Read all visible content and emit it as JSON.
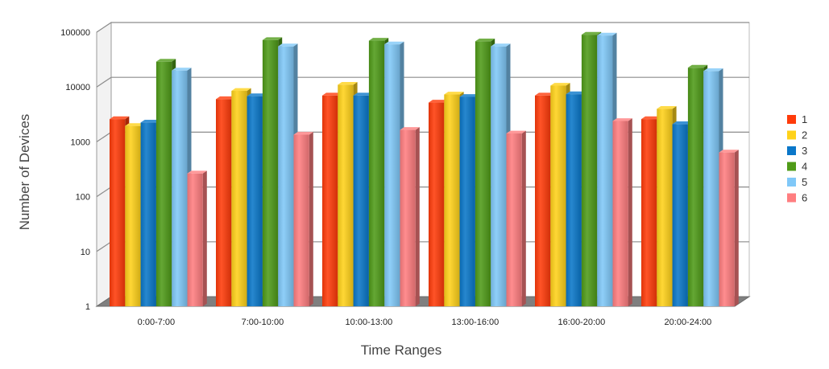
{
  "chart_data": {
    "type": "bar",
    "scale": "log",
    "three_d": true,
    "xlabel": "Time Ranges",
    "ylabel": "Number of Devices",
    "ylim": [
      1,
      100000
    ],
    "yticks": [
      "1",
      "10",
      "100",
      "1000",
      "10000",
      "100000"
    ],
    "grid": true,
    "legend_position": "right",
    "categories": [
      "0:00-7:00",
      "7:00-10:00",
      "10:00-13:00",
      "13:00-16:00",
      "16:00-20:00",
      "20:00-24:00"
    ],
    "series": [
      {
        "name": "1",
        "color": "#ff3b0a",
        "values": [
          2600,
          6000,
          7000,
          5200,
          7000,
          2600
        ]
      },
      {
        "name": "2",
        "color": "#ffd21a",
        "values": [
          1950,
          8500,
          11000,
          7300,
          10600,
          4000
        ]
      },
      {
        "name": "3",
        "color": "#0a77c9",
        "values": [
          2250,
          6800,
          7000,
          6600,
          7400,
          2100
        ]
      },
      {
        "name": "4",
        "color": "#4f9b18",
        "values": [
          29000,
          72000,
          70000,
          68000,
          90000,
          22500
        ]
      },
      {
        "name": "5",
        "color": "#80c8f8",
        "values": [
          20000,
          55000,
          60000,
          55000,
          87000,
          19500
        ]
      },
      {
        "name": "6",
        "color": "#ff7e80",
        "values": [
          265,
          1350,
          1650,
          1420,
          2400,
          640
        ]
      }
    ]
  }
}
